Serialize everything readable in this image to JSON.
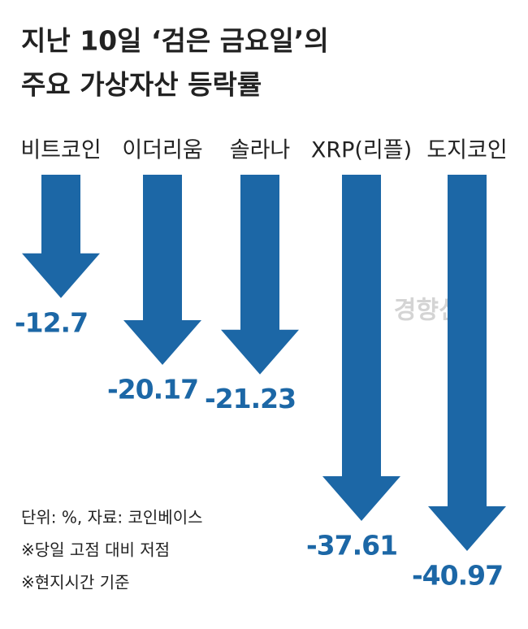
{
  "chart_data": {
    "type": "arrow",
    "title": [
      "지난 10일 ‘검은 금요일’의",
      "주요 가상자산 등락률"
    ],
    "categories": [
      "비트코인",
      "이더리움",
      "솔라나",
      "XRP(리플)",
      "도지코인"
    ],
    "values": [
      -12.7,
      -20.17,
      -21.23,
      -37.61,
      -40.97
    ],
    "color": "#1c67a6",
    "notes": [
      "단위: %, 자료: 코인베이스",
      "※당일 고점 대비 저점",
      "※현지시간 기준"
    ],
    "watermark": "경향신문"
  }
}
